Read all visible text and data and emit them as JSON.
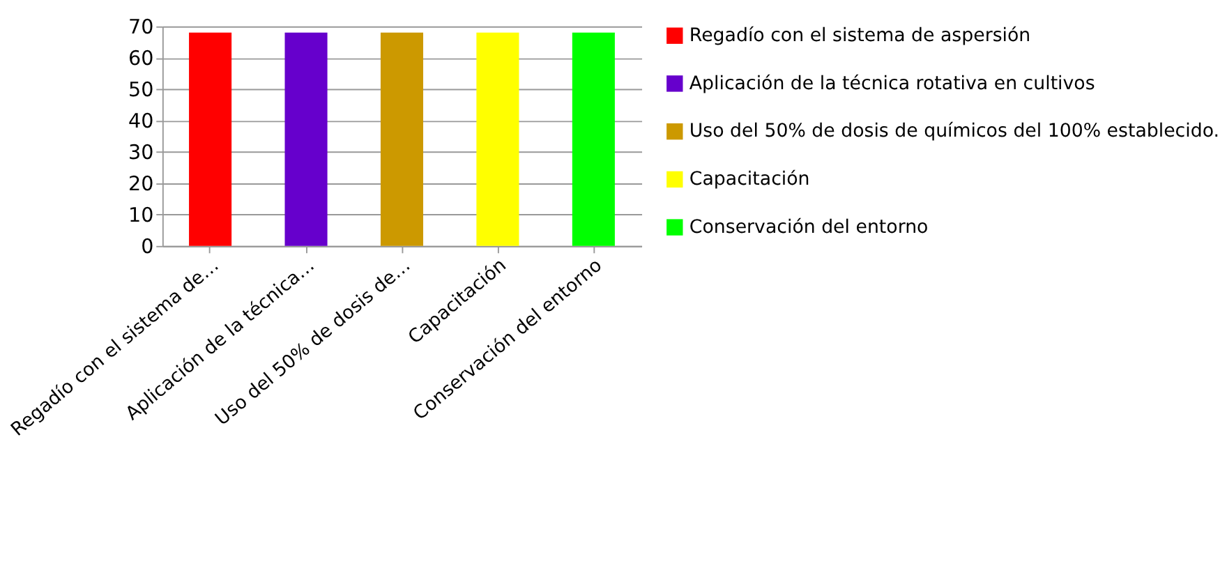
{
  "chart_data": {
    "type": "bar",
    "categories": [
      "Regadío con el sistema de…",
      "Aplicación de la técnica…",
      "Uso del 50% de dosis de…",
      "Capacitación",
      "Conservación del entorno"
    ],
    "series": [
      {
        "name": " Regadío con el sistema de aspersión",
        "color": "#ff0000",
        "values": [
          68,
          null,
          null,
          null,
          null
        ]
      },
      {
        "name": "Aplicación de la técnica rotativa en cultivos",
        "color": "#6600cc",
        "values": [
          null,
          68,
          null,
          null,
          null
        ]
      },
      {
        "name": "Uso del 50% de dosis de químicos del 100% establecido.",
        "color": "#cc9900",
        "values": [
          null,
          null,
          68,
          null,
          null
        ]
      },
      {
        "name": "Capacitación",
        "color": "#ffff00",
        "values": [
          null,
          null,
          null,
          68,
          null
        ]
      },
      {
        "name": "Conservación del entorno",
        "color": "#00ff00",
        "values": [
          null,
          null,
          null,
          null,
          68
        ]
      }
    ],
    "ylim": [
      0,
      70
    ],
    "yticks": [
      0,
      10,
      20,
      30,
      40,
      50,
      60,
      70
    ],
    "grid": "y",
    "legend": "right"
  }
}
